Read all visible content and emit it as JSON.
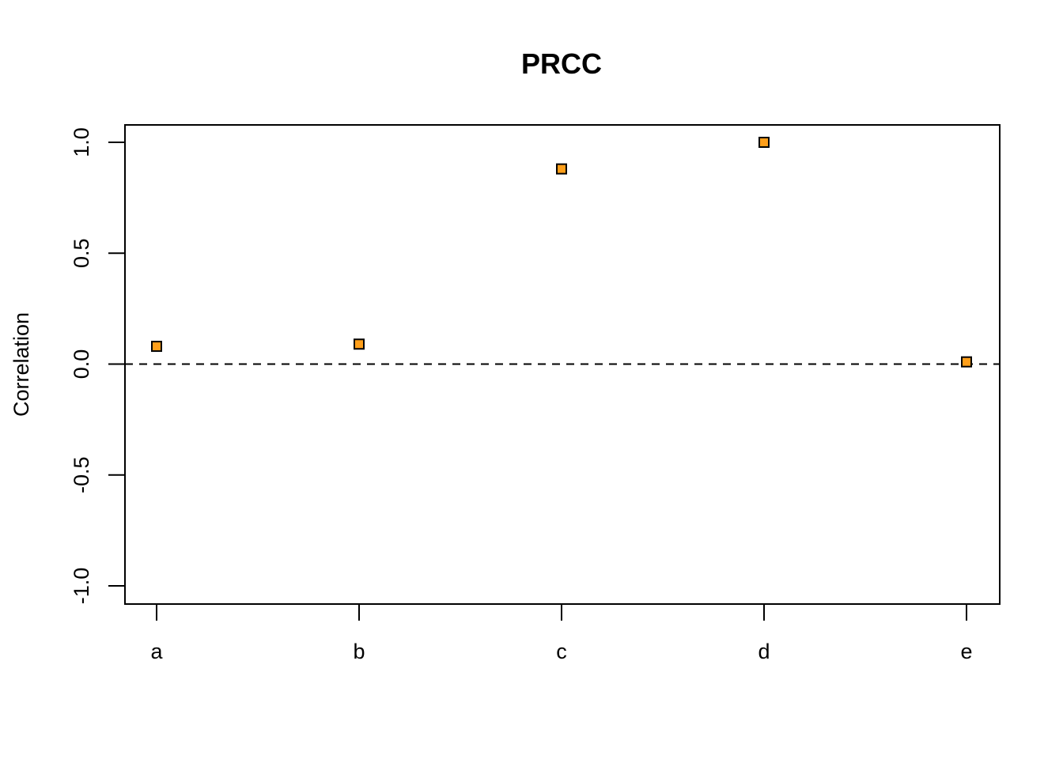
{
  "chart_data": {
    "type": "scatter",
    "title": "PRCC",
    "xlabel": "",
    "ylabel": "Correlation",
    "categories": [
      "a",
      "b",
      "c",
      "d",
      "e"
    ],
    "values": [
      0.08,
      0.09,
      0.88,
      1.0,
      0.01
    ],
    "ylim": [
      -1.0,
      1.0
    ],
    "yticks": [
      -1.0,
      -0.5,
      0.0,
      0.5,
      1.0
    ],
    "ytick_labels": [
      "-1.0",
      "-0.5",
      "0.0",
      "0.5",
      "1.0"
    ],
    "reference_line": 0.0,
    "grid": false,
    "legend": "none",
    "marker": "square",
    "marker_color": "#ff9f1a",
    "marker_edge_color": "#000000"
  }
}
